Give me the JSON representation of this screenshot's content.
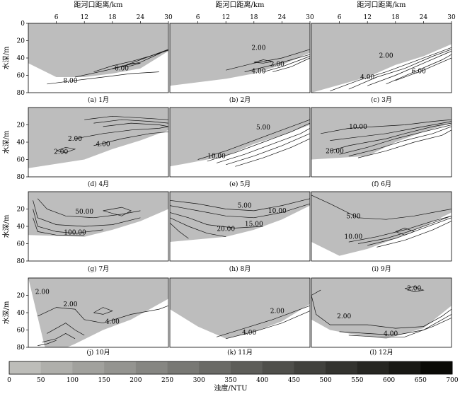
{
  "chart_data": {
    "type": "contour",
    "top_axis_label": "距河口距离/km",
    "top_ticks": [
      "6",
      "12",
      "18",
      "24",
      "30"
    ],
    "x_range": [
      0,
      30
    ],
    "y_label": "水深/m",
    "colorbar": {
      "label": "浊度/NTU",
      "ticks": [
        "0",
        "50",
        "100",
        "150",
        "200",
        "250",
        "300",
        "350",
        "400",
        "450",
        "500",
        "550",
        "600",
        "650",
        "700"
      ],
      "range": [
        0,
        700
      ]
    },
    "panels": [
      {
        "id": "a",
        "caption": "(a)  1月",
        "y_range": [
          0,
          80
        ],
        "y_ticks": [
          "0",
          "20",
          "40",
          "60",
          "80"
        ],
        "contour_labels": [
          "6.00",
          "8.00"
        ]
      },
      {
        "id": "b",
        "caption": "(b)  2月",
        "y_range": [
          0,
          80
        ],
        "y_ticks": [
          "0",
          "20",
          "40",
          "60",
          "80"
        ],
        "contour_labels": [
          "2.00",
          "2.00",
          "4.00"
        ]
      },
      {
        "id": "c",
        "caption": "(c)  3月",
        "y_range": [
          0,
          80
        ],
        "y_ticks": [
          "0",
          "20",
          "40",
          "60",
          "80"
        ],
        "contour_labels": [
          "2.00",
          "6.00",
          "4.00"
        ]
      },
      {
        "id": "d",
        "caption": "(d)  4月",
        "y_range": [
          0,
          80
        ],
        "y_ticks": [
          "20",
          "40",
          "60",
          "80"
        ],
        "contour_labels": [
          "2.00",
          "4.00",
          "2.00"
        ]
      },
      {
        "id": "e",
        "caption": "(e)  5月",
        "y_range": [
          0,
          80
        ],
        "y_ticks": [
          "20",
          "40",
          "60",
          "80"
        ],
        "contour_labels": [
          "5.00",
          "10.00"
        ]
      },
      {
        "id": "f",
        "caption": "(f)  6月",
        "y_range": [
          0,
          80
        ],
        "y_ticks": [
          "20",
          "40",
          "60",
          "80"
        ],
        "contour_labels": [
          "10.00",
          "20.00"
        ]
      },
      {
        "id": "g",
        "caption": "(g)  7月",
        "y_range": [
          0,
          80
        ],
        "y_ticks": [
          "20",
          "40",
          "60",
          "80"
        ],
        "contour_labels": [
          "50.00",
          "100.00"
        ]
      },
      {
        "id": "h",
        "caption": "(h)  8月",
        "y_range": [
          0,
          80
        ],
        "y_ticks": [
          "20",
          "40",
          "60",
          "80"
        ],
        "contour_labels": [
          "5.00",
          "10.00",
          "15.00",
          "20.00"
        ]
      },
      {
        "id": "i",
        "caption": "(i)  9月",
        "y_range": [
          0,
          80
        ],
        "y_ticks": [
          "20",
          "40",
          "60",
          "80"
        ],
        "contour_labels": [
          "5.00",
          "10.00"
        ]
      },
      {
        "id": "j",
        "caption": "(j)  10月",
        "y_range": [
          0,
          80
        ],
        "y_ticks": [
          "20",
          "40",
          "60",
          "80"
        ],
        "contour_labels": [
          "2.00",
          "2.00",
          "4.00"
        ]
      },
      {
        "id": "k",
        "caption": "(k)  11月",
        "y_range": [
          0,
          80
        ],
        "y_ticks": [
          "20",
          "40",
          "60",
          "80"
        ],
        "contour_labels": [
          "2.00",
          "4.00"
        ]
      },
      {
        "id": "l",
        "caption": "(l)  12月",
        "y_range": [
          0,
          80
        ],
        "y_ticks": [
          "20",
          "40",
          "60",
          "80"
        ],
        "contour_labels": [
          "2.00",
          "2.00",
          "4.00"
        ]
      }
    ]
  }
}
